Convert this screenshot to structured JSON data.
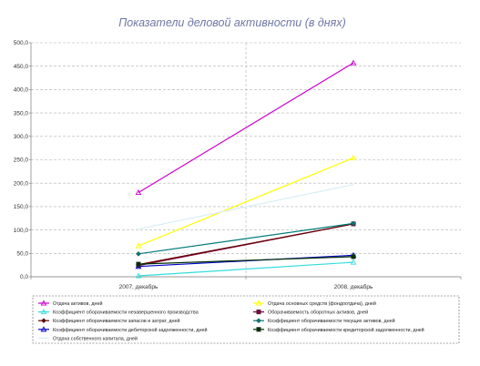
{
  "chart_data": {
    "type": "line",
    "title": "Показатели деловой активности (в днях)",
    "xlabel": "",
    "ylabel": "",
    "categories": [
      "2007, декабрь",
      "2008, декабрь"
    ],
    "ylim": [
      0,
      500
    ],
    "yticks": [
      "0,0",
      "50,0",
      "100,0",
      "150,0",
      "200,0",
      "250,0",
      "300,0",
      "350,0",
      "400,0",
      "450,0",
      "500,0"
    ],
    "ytick_values": [
      0,
      50,
      100,
      150,
      200,
      250,
      300,
      350,
      400,
      450,
      500
    ],
    "grid": true,
    "legend_position": "bottom",
    "series": [
      {
        "name": "Отдача активов, дней",
        "values": [
          180,
          457
        ],
        "color": "#cc00cc",
        "marker": "triangle"
      },
      {
        "name": "Отдача основных средств (фондоотдача), дней",
        "values": [
          66,
          254
        ],
        "color": "#ffff00",
        "marker": "triangle"
      },
      {
        "name": "Коэффициент оборачиваемости незавершенного производства",
        "values": [
          2,
          31
        ],
        "color": "#33dddd",
        "marker": "triangle"
      },
      {
        "name": "Оборачиваемость оборотных активов, дней",
        "values": [
          24,
          113
        ],
        "color": "#800040",
        "marker": "square"
      },
      {
        "name": "Коэффициент оборачиваемости запасов и затрат, дней",
        "values": [
          26,
          113
        ],
        "color": "#660000",
        "marker": "diamond"
      },
      {
        "name": "Коэффициент оборачиваемости текущих активов, дней",
        "values": [
          49,
          114
        ],
        "color": "#007a7a",
        "marker": "diamond"
      },
      {
        "name": "Коэффициент оборачиваемости дебиторской задолженности, дней",
        "values": [
          22,
          46
        ],
        "color": "#0000cc",
        "marker": "triangle"
      },
      {
        "name": "Коэффициент оборачиваемости кредиторской задолженности, дней",
        "values": [
          27,
          43
        ],
        "color": "#003300",
        "marker": "square"
      },
      {
        "name": "Отдача собственного капитала, дней",
        "values": [
          102,
          197
        ],
        "color": "#d8eef5",
        "marker": "none"
      }
    ]
  }
}
